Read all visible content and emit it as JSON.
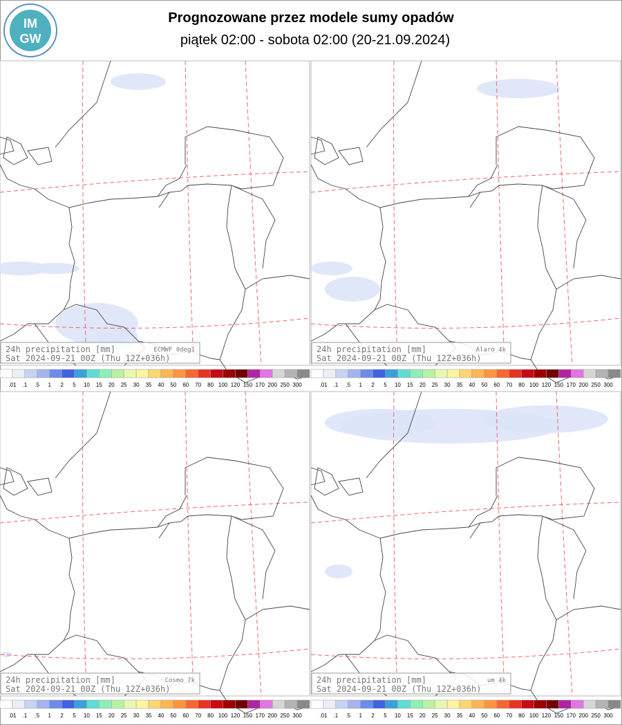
{
  "header": {
    "title": "Prognozowane przez modele sumy opadów",
    "subtitle": "piątek 02:00 - sobota 02:00 (20-21.09.2024)"
  },
  "logo": {
    "top": "IM",
    "bottom": "GW"
  },
  "panels": [
    {
      "label": "24h precipitation   [mm]",
      "model": "ECMWF 0deg1",
      "run": "Sat 2024-09-21 00Z (Thu 12Z+036h)"
    },
    {
      "label": "24h precipitation   [mm]",
      "model": "Alaro 4k",
      "run": "Sat 2024-09-21 00Z (Thu 12Z+036h)"
    },
    {
      "label": "24h precipitation   [mm]",
      "model": "Cosmo 7k",
      "run": "Sat 2024-09-21 00Z (Thu 12Z+036h)"
    },
    {
      "label": "24h precipitation   [mm]",
      "model": "um 4k",
      "run": "Sat 2024-09-21 00Z (Thu 12Z+036h)"
    }
  ],
  "legend": {
    "labels": [
      ".01",
      ".1",
      ".5",
      "1",
      "2",
      "5",
      "10",
      "15",
      "20",
      "25",
      "30",
      "35",
      "40",
      "50",
      "60",
      "70",
      "80",
      "100",
      "120",
      "150",
      "170",
      "200",
      "250",
      "300"
    ],
    "colors": [
      "#ffffff",
      "#eceef8",
      "#c9d2f2",
      "#a3b4f0",
      "#6d8cea",
      "#3f62e0",
      "#3aa0dc",
      "#5fdcd4",
      "#8eeeb8",
      "#b9f2a2",
      "#e9f8b0",
      "#fff4a0",
      "#ffd672",
      "#ffb652",
      "#ff9440",
      "#f86632",
      "#e83222",
      "#c80a12",
      "#9c0000",
      "#700000",
      "#b024a4",
      "#e076e0",
      "#d6d6d6",
      "#b4b4b4",
      "#8a8a8a",
      "#5c5c5c",
      "#503434"
    ]
  }
}
